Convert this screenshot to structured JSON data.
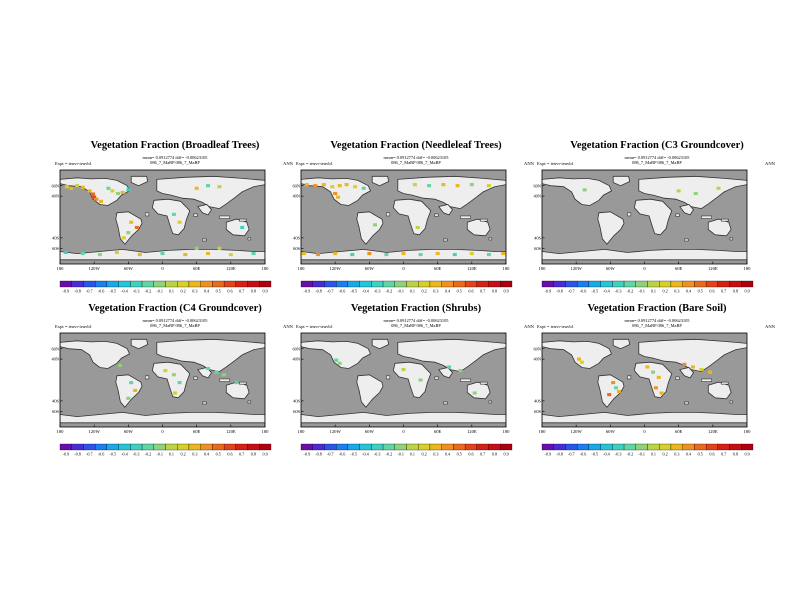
{
  "figure": {
    "panel_stats": "mean= 0.0912774 diff= -0.00623105",
    "panel_runs": "086_7_MaBP   086_7_MaBP",
    "expt_label": "Expt = teuvr-teuvb1",
    "season": "ANN"
  },
  "colors": {
    "ocean": "#999999",
    "land": "#eeeeee",
    "coast": "#333333",
    "scale": [
      "#6a0dad",
      "#4b2bd6",
      "#2a55e8",
      "#1a7ff0",
      "#19a9e8",
      "#23c6d8",
      "#3fd1c0",
      "#5fd6a6",
      "#8ed27a",
      "#bcd444",
      "#d9cf2a",
      "#ecb61f",
      "#f09020",
      "#ea6a1c",
      "#e24318",
      "#d62015",
      "#c80e12",
      "#b00010"
    ]
  },
  "chart_data": [
    {
      "type": "heatmap",
      "title": "Vegetation Fraction (Broadleaf Trees)",
      "x_ticks": [
        "180",
        "120W",
        "60W",
        "0",
        "60E",
        "120E",
        "180"
      ],
      "y_ticks": [
        "60N",
        "40N",
        "40S",
        "60S"
      ],
      "colorbar_ticks": [
        "-0.9",
        "-0.8",
        "-0.7",
        "-0.6",
        "-0.5",
        "-0.4",
        "-0.3",
        "-0.2",
        "-0.1",
        "0.1",
        "0.2",
        "0.3",
        "0.4",
        "0.5",
        "0.6",
        "0.7",
        "0.8",
        "0.9"
      ],
      "xlim": [
        -180,
        180
      ],
      "ylim": [
        -90,
        90
      ],
      "cells": [
        {
          "lon": -168,
          "lat": 58,
          "v": 0.2
        },
        {
          "lon": -160,
          "lat": 55,
          "v": 0.3
        },
        {
          "lon": -150,
          "lat": 60,
          "v": 0.15
        },
        {
          "lon": -140,
          "lat": 57,
          "v": 0.25
        },
        {
          "lon": -128,
          "lat": 50,
          "v": 0.3
        },
        {
          "lon": -122,
          "lat": 44,
          "v": 0.5
        },
        {
          "lon": -120,
          "lat": 38,
          "v": 0.6
        },
        {
          "lon": -116,
          "lat": 34,
          "v": 0.4
        },
        {
          "lon": -108,
          "lat": 30,
          "v": 0.3
        },
        {
          "lon": -95,
          "lat": 55,
          "v": -0.2
        },
        {
          "lon": -88,
          "lat": 50,
          "v": 0.2
        },
        {
          "lon": -78,
          "lat": 45,
          "v": -0.15
        },
        {
          "lon": -70,
          "lat": 47,
          "v": 0.25
        },
        {
          "lon": -60,
          "lat": 52,
          "v": -0.3
        },
        {
          "lon": -55,
          "lat": -10,
          "v": 0.3
        },
        {
          "lon": -45,
          "lat": -20,
          "v": 0.5
        },
        {
          "lon": -60,
          "lat": -30,
          "v": -0.15
        },
        {
          "lon": -68,
          "lat": -40,
          "v": 0.2
        },
        {
          "lon": 20,
          "lat": 5,
          "v": -0.2
        },
        {
          "lon": 30,
          "lat": -10,
          "v": 0.2
        },
        {
          "lon": 60,
          "lat": 55,
          "v": 0.3
        },
        {
          "lon": 80,
          "lat": 60,
          "v": -0.2
        },
        {
          "lon": 100,
          "lat": 58,
          "v": 0.15
        },
        {
          "lon": 140,
          "lat": -20,
          "v": -0.3
        },
        {
          "lon": -170,
          "lat": -68,
          "v": -0.3
        },
        {
          "lon": -140,
          "lat": -70,
          "v": -0.2
        },
        {
          "lon": -110,
          "lat": -72,
          "v": -0.15
        },
        {
          "lon": -80,
          "lat": -68,
          "v": 0.2
        },
        {
          "lon": -40,
          "lat": -72,
          "v": 0.3
        },
        {
          "lon": 0,
          "lat": -70,
          "v": -0.2
        },
        {
          "lon": 40,
          "lat": -72,
          "v": 0.25
        },
        {
          "lon": 80,
          "lat": -70,
          "v": 0.35
        },
        {
          "lon": 120,
          "lat": -72,
          "v": 0.2
        },
        {
          "lon": 160,
          "lat": -70,
          "v": -0.25
        },
        {
          "lon": 100,
          "lat": -60,
          "v": 0.15
        },
        {
          "lon": 60,
          "lat": -60,
          "v": -0.15
        }
      ]
    },
    {
      "type": "heatmap",
      "title": "Vegetation Fraction (Needleleaf Trees)",
      "x_ticks": [
        "180",
        "120W",
        "60W",
        "0",
        "60E",
        "120E",
        "180"
      ],
      "y_ticks": [
        "60N",
        "40N",
        "40S",
        "60S"
      ],
      "colorbar_ticks": [
        "-0.9",
        "-0.8",
        "-0.7",
        "-0.6",
        "-0.5",
        "-0.4",
        "-0.3",
        "-0.2",
        "-0.1",
        "0.1",
        "0.2",
        "0.3",
        "0.4",
        "0.5",
        "0.6",
        "0.7",
        "0.8",
        "0.9"
      ],
      "xlim": [
        -180,
        180
      ],
      "ylim": [
        -90,
        90
      ],
      "cells": [
        {
          "lon": -170,
          "lat": 62,
          "v": 0.3
        },
        {
          "lon": -155,
          "lat": 60,
          "v": 0.4
        },
        {
          "lon": -140,
          "lat": 62,
          "v": 0.3
        },
        {
          "lon": -125,
          "lat": 58,
          "v": 0.2
        },
        {
          "lon": -112,
          "lat": 60,
          "v": 0.35
        },
        {
          "lon": -100,
          "lat": 62,
          "v": 0.25
        },
        {
          "lon": -85,
          "lat": 58,
          "v": 0.2
        },
        {
          "lon": -70,
          "lat": 55,
          "v": -0.2
        },
        {
          "lon": -120,
          "lat": 45,
          "v": 0.4
        },
        {
          "lon": -115,
          "lat": 38,
          "v": 0.3
        },
        {
          "lon": 20,
          "lat": 62,
          "v": 0.2
        },
        {
          "lon": 45,
          "lat": 60,
          "v": -0.2
        },
        {
          "lon": 70,
          "lat": 62,
          "v": 0.25
        },
        {
          "lon": 95,
          "lat": 60,
          "v": 0.3
        },
        {
          "lon": 120,
          "lat": 62,
          "v": -0.15
        },
        {
          "lon": 150,
          "lat": 60,
          "v": 0.2
        },
        {
          "lon": -50,
          "lat": -15,
          "v": -0.15
        },
        {
          "lon": 25,
          "lat": -20,
          "v": 0.15
        },
        {
          "lon": -175,
          "lat": -70,
          "v": 0.3
        },
        {
          "lon": -150,
          "lat": -72,
          "v": 0.4
        },
        {
          "lon": -120,
          "lat": -70,
          "v": 0.3
        },
        {
          "lon": -90,
          "lat": -72,
          "v": -0.3
        },
        {
          "lon": -60,
          "lat": -70,
          "v": 0.4
        },
        {
          "lon": -30,
          "lat": -72,
          "v": -0.2
        },
        {
          "lon": 0,
          "lat": -70,
          "v": 0.35
        },
        {
          "lon": 30,
          "lat": -72,
          "v": -0.25
        },
        {
          "lon": 60,
          "lat": -70,
          "v": 0.3
        },
        {
          "lon": 90,
          "lat": -72,
          "v": -0.3
        },
        {
          "lon": 120,
          "lat": -70,
          "v": 0.2
        },
        {
          "lon": 150,
          "lat": -72,
          "v": -0.2
        },
        {
          "lon": 175,
          "lat": -70,
          "v": 0.3
        }
      ]
    },
    {
      "type": "heatmap",
      "title": "Vegetation Fraction (C3 Groundcover)",
      "x_ticks": [
        "180",
        "120W",
        "60W",
        "0",
        "60E",
        "120E",
        "180"
      ],
      "y_ticks": [
        "60N",
        "40N",
        "40S",
        "60S"
      ],
      "colorbar_ticks": [
        "-0.9",
        "-0.8",
        "-0.7",
        "-0.6",
        "-0.5",
        "-0.4",
        "-0.3",
        "-0.2",
        "-0.1",
        "0.1",
        "0.2",
        "0.3",
        "0.4",
        "0.5",
        "0.6",
        "0.7",
        "0.8",
        "0.9"
      ],
      "xlim": [
        -180,
        180
      ],
      "ylim": [
        -90,
        90
      ],
      "cells": [
        {
          "lon": -105,
          "lat": 52,
          "v": -0.15
        },
        {
          "lon": 60,
          "lat": 50,
          "v": 0.15
        },
        {
          "lon": 90,
          "lat": 45,
          "v": -0.15
        },
        {
          "lon": 130,
          "lat": 55,
          "v": 0.15
        }
      ]
    },
    {
      "type": "heatmap",
      "title": "Vegetation Fraction (C4 Groundcover)",
      "x_ticks": [
        "180",
        "120W",
        "60W",
        "0",
        "60E",
        "120E",
        "180"
      ],
      "y_ticks": [
        "60N",
        "40N",
        "40S",
        "60S"
      ],
      "colorbar_ticks": [
        "-0.9",
        "-0.8",
        "-0.7",
        "-0.6",
        "-0.5",
        "-0.4",
        "-0.3",
        "-0.2",
        "-0.1",
        "0.1",
        "0.2",
        "0.3",
        "0.4",
        "0.5",
        "0.6",
        "0.7",
        "0.8",
        "0.9"
      ],
      "xlim": [
        -180,
        180
      ],
      "ylim": [
        -90,
        90
      ],
      "cells": [
        {
          "lon": -75,
          "lat": 28,
          "v": -0.15
        },
        {
          "lon": -55,
          "lat": -5,
          "v": -0.2
        },
        {
          "lon": -48,
          "lat": -20,
          "v": 0.25
        },
        {
          "lon": -60,
          "lat": -35,
          "v": -0.15
        },
        {
          "lon": 5,
          "lat": 18,
          "v": 0.2
        },
        {
          "lon": 20,
          "lat": 10,
          "v": -0.15
        },
        {
          "lon": 30,
          "lat": -5,
          "v": -0.2
        },
        {
          "lon": 22,
          "lat": -25,
          "v": 0.2
        },
        {
          "lon": 80,
          "lat": 22,
          "v": -0.2
        },
        {
          "lon": 95,
          "lat": 15,
          "v": -0.25
        },
        {
          "lon": 108,
          "lat": 10,
          "v": -0.15
        },
        {
          "lon": 130,
          "lat": -5,
          "v": -0.2
        }
      ]
    },
    {
      "type": "heatmap",
      "title": "Vegetation Fraction (Shrubs)",
      "x_ticks": [
        "180",
        "120W",
        "60W",
        "0",
        "60E",
        "120E",
        "180"
      ],
      "y_ticks": [
        "60N",
        "40N",
        "40S",
        "60S"
      ],
      "colorbar_ticks": [
        "-0.9",
        "-0.8",
        "-0.7",
        "-0.6",
        "-0.5",
        "-0.4",
        "-0.3",
        "-0.2",
        "-0.1",
        "0.1",
        "0.2",
        "0.3",
        "0.4",
        "0.5",
        "0.6",
        "0.7",
        "0.8",
        "0.9"
      ],
      "xlim": [
        -180,
        180
      ],
      "ylim": [
        -90,
        90
      ],
      "cells": [
        {
          "lon": -118,
          "lat": 38,
          "v": -0.2
        },
        {
          "lon": -112,
          "lat": 32,
          "v": -0.15
        },
        {
          "lon": 0,
          "lat": 20,
          "v": 0.15
        },
        {
          "lon": 30,
          "lat": 0,
          "v": -0.15
        },
        {
          "lon": 80,
          "lat": 25,
          "v": -0.2
        },
        {
          "lon": 100,
          "lat": 18,
          "v": -0.15
        },
        {
          "lon": 125,
          "lat": -25,
          "v": -0.15
        }
      ]
    },
    {
      "type": "heatmap",
      "title": "Vegetation Fraction (Bare Soil)",
      "x_ticks": [
        "180",
        "120W",
        "60W",
        "0",
        "60E",
        "120E",
        "180"
      ],
      "y_ticks": [
        "60N",
        "40N",
        "40S",
        "60S"
      ],
      "colorbar_ticks": [
        "-0.9",
        "-0.8",
        "-0.7",
        "-0.6",
        "-0.5",
        "-0.4",
        "-0.3",
        "-0.2",
        "-0.1",
        "0.1",
        "0.2",
        "0.3",
        "0.4",
        "0.5",
        "0.6",
        "0.7",
        "0.8",
        "0.9"
      ],
      "xlim": [
        -180,
        180
      ],
      "ylim": [
        -90,
        90
      ],
      "cells": [
        {
          "lon": -115,
          "lat": 40,
          "v": 0.3
        },
        {
          "lon": -110,
          "lat": 34,
          "v": 0.2
        },
        {
          "lon": -55,
          "lat": -5,
          "v": 0.4
        },
        {
          "lon": -50,
          "lat": -15,
          "v": -0.2
        },
        {
          "lon": -62,
          "lat": -28,
          "v": 0.5
        },
        {
          "lon": -45,
          "lat": -22,
          "v": 0.3
        },
        {
          "lon": 5,
          "lat": 25,
          "v": 0.35
        },
        {
          "lon": 15,
          "lat": 15,
          "v": -0.15
        },
        {
          "lon": 25,
          "lat": 5,
          "v": 0.3
        },
        {
          "lon": 20,
          "lat": -15,
          "v": 0.4
        },
        {
          "lon": 30,
          "lat": -25,
          "v": 0.3
        },
        {
          "lon": 70,
          "lat": 30,
          "v": 0.4
        },
        {
          "lon": 85,
          "lat": 25,
          "v": 0.3
        },
        {
          "lon": 100,
          "lat": 20,
          "v": 0.2
        },
        {
          "lon": 115,
          "lat": 15,
          "v": 0.35
        }
      ]
    }
  ]
}
